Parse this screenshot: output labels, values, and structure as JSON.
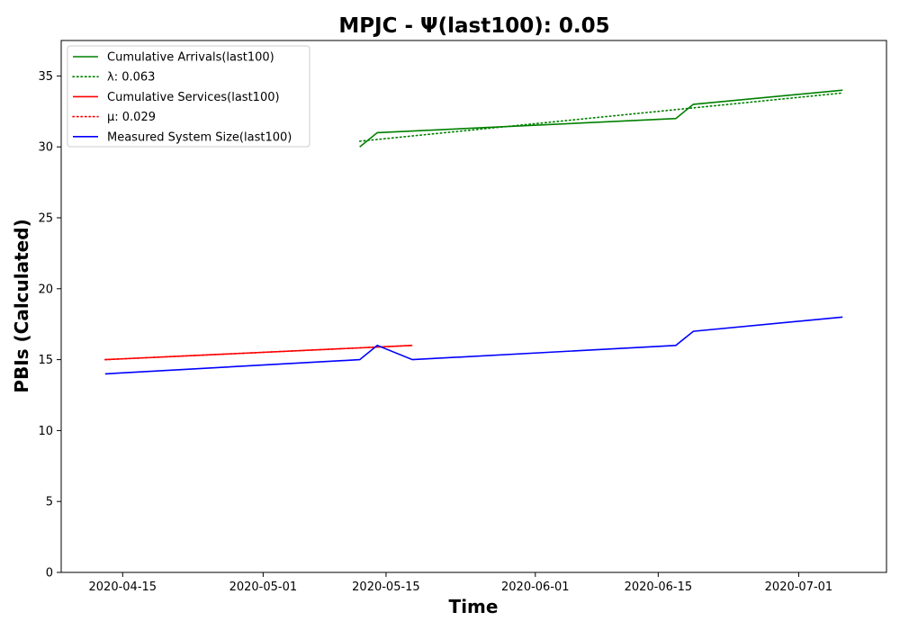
{
  "chart_data": {
    "type": "line",
    "title": "MPJC -  Ψ(last100): 0.05",
    "xlabel": "Time",
    "ylabel": "PBIs (Calculated)",
    "x_axis": {
      "type": "date",
      "range": [
        "2020-04-08",
        "2020-07-11"
      ],
      "ticks": [
        "2020-04-15",
        "2020-05-01",
        "2020-05-15",
        "2020-06-01",
        "2020-06-15",
        "2020-07-01"
      ]
    },
    "y_axis": {
      "range": [
        0,
        37.5
      ],
      "ticks": [
        0,
        5,
        10,
        15,
        20,
        25,
        30,
        35
      ]
    },
    "grid": false,
    "legend_position": "top-left",
    "series": [
      {
        "name": "Cumulative Arrivals(last100)",
        "color": "#008000",
        "style": "solid",
        "points": [
          [
            "2020-05-12",
            30
          ],
          [
            "2020-05-14",
            31
          ],
          [
            "2020-06-17",
            32
          ],
          [
            "2020-06-19",
            33
          ],
          [
            "2020-07-06",
            34
          ]
        ]
      },
      {
        "name": "λ: 0.063",
        "color": "#008000",
        "style": "dotted",
        "points": [
          [
            "2020-05-12",
            30.4
          ],
          [
            "2020-07-06",
            33.8
          ]
        ]
      },
      {
        "name": "Cumulative Services(last100)",
        "color": "#ff0000",
        "style": "solid",
        "points": [
          [
            "2020-04-13",
            15
          ],
          [
            "2020-05-18",
            16
          ]
        ]
      },
      {
        "name": "μ: 0.029",
        "color": "#ff0000",
        "style": "dotted",
        "points": [
          [
            "2020-04-13",
            15
          ],
          [
            "2020-05-18",
            16
          ]
        ]
      },
      {
        "name": "Measured System Size(last100)",
        "color": "#0000ff",
        "style": "solid",
        "points": [
          [
            "2020-04-13",
            14
          ],
          [
            "2020-05-12",
            15
          ],
          [
            "2020-05-14",
            16
          ],
          [
            "2020-05-18",
            15
          ],
          [
            "2020-06-17",
            16
          ],
          [
            "2020-06-19",
            17
          ],
          [
            "2020-07-06",
            18
          ]
        ]
      }
    ]
  }
}
